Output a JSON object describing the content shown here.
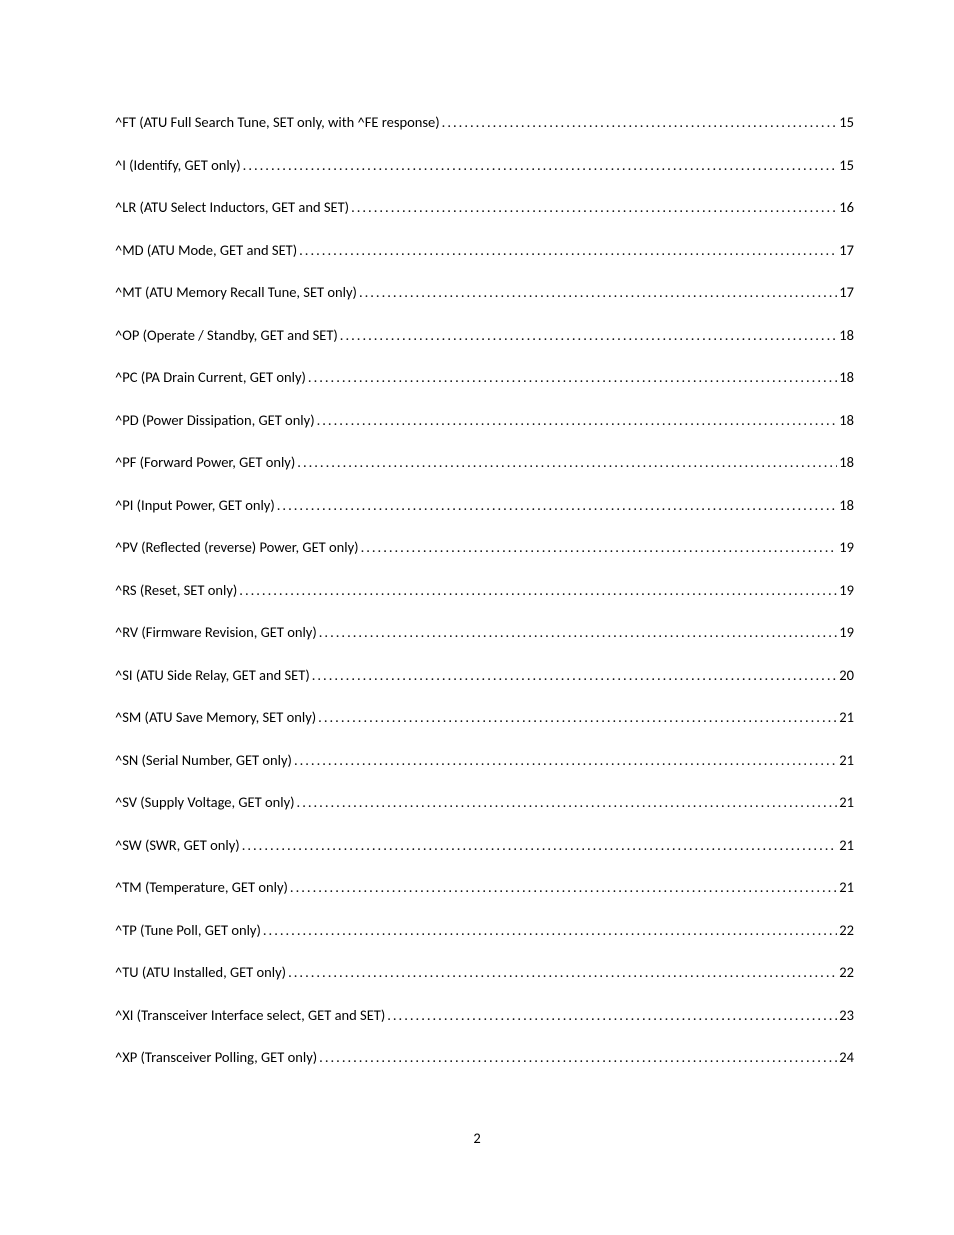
{
  "page_number": "2",
  "entries": [
    {
      "label": "^FT (ATU Full Search Tune, SET only, with ^FE response)",
      "page": "15"
    },
    {
      "label": "^I (Identify, GET only)",
      "page": "15"
    },
    {
      "label": "^LR (ATU Select Inductors, GET and SET)",
      "page": "16"
    },
    {
      "label": "^MD (ATU Mode, GET and SET)",
      "page": "17"
    },
    {
      "label": "^MT (ATU Memory Recall Tune, SET only)",
      "page": "17"
    },
    {
      "label": "^OP (Operate / Standby, GET and SET)",
      "page": "18"
    },
    {
      "label": "^PC (PA Drain Current, GET only)",
      "page": "18"
    },
    {
      "label": "^PD (Power Dissipation, GET only)",
      "page": "18"
    },
    {
      "label": "^PF (Forward Power, GET only)",
      "page": "18"
    },
    {
      "label": "^PI (Input Power, GET only)",
      "page": "18"
    },
    {
      "label": "^PV (Reflected (reverse) Power, GET only)",
      "page": "19"
    },
    {
      "label": "^RS (Reset, SET only)",
      "page": "19"
    },
    {
      "label": "^RV (Firmware Revision, GET only)",
      "page": "19"
    },
    {
      "label": "^SI (ATU Side Relay, GET and SET)",
      "page": "20"
    },
    {
      "label": "^SM (ATU Save Memory, SET only)",
      "page": "21"
    },
    {
      "label": "^SN (Serial Number, GET only)",
      "page": "21"
    },
    {
      "label": "^SV (Supply Voltage, GET only)",
      "page": "21"
    },
    {
      "label": "^SW (SWR, GET only)",
      "page": "21"
    },
    {
      "label": "^TM (Temperature, GET only)",
      "page": "21"
    },
    {
      "label": "^TP (Tune Poll, GET only)",
      "page": "22"
    },
    {
      "label": "^TU (ATU Installed, GET only)",
      "page": "22"
    },
    {
      "label": "^XI (Transceiver Interface select, GET and SET)",
      "page": "23"
    },
    {
      "label": "^XP (Transceiver Polling, GET only)",
      "page": "24"
    }
  ]
}
